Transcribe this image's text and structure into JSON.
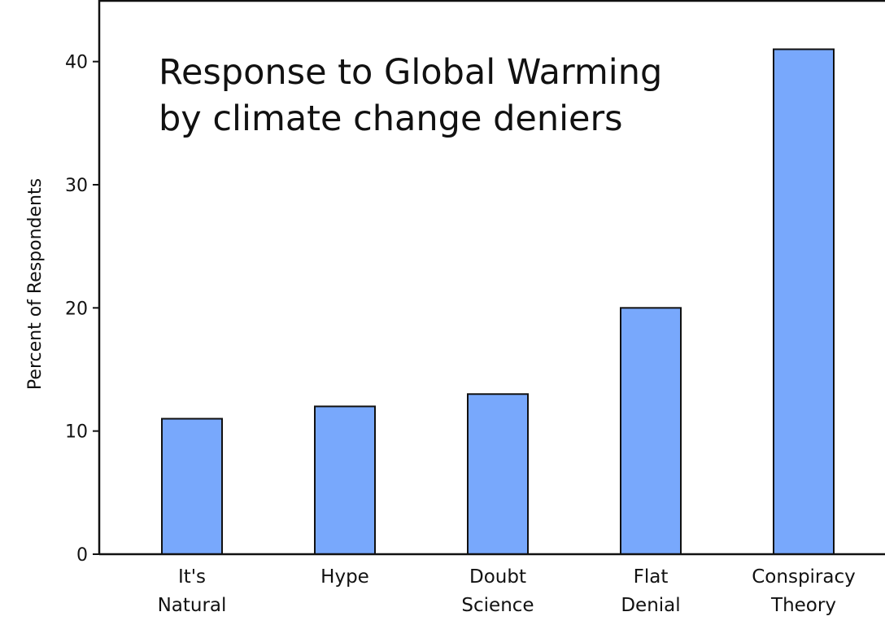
{
  "chart_data": {
    "type": "bar",
    "title_lines": [
      "Response to Global Warming",
      "by climate change deniers"
    ],
    "xlabel": "",
    "ylabel": "Percent of Respondents",
    "categories": [
      [
        "It's",
        "Natural"
      ],
      [
        "Hype"
      ],
      [
        "Doubt",
        "Science"
      ],
      [
        "Flat",
        "Denial"
      ],
      [
        "Conspiracy",
        "Theory"
      ]
    ],
    "values": [
      11,
      12,
      13,
      20,
      41
    ],
    "yticks": [
      0,
      10,
      20,
      30,
      40
    ],
    "ylim": [
      0,
      45
    ],
    "grid": false,
    "bar_color": "#78a8fc",
    "edge_color": "#111111"
  }
}
